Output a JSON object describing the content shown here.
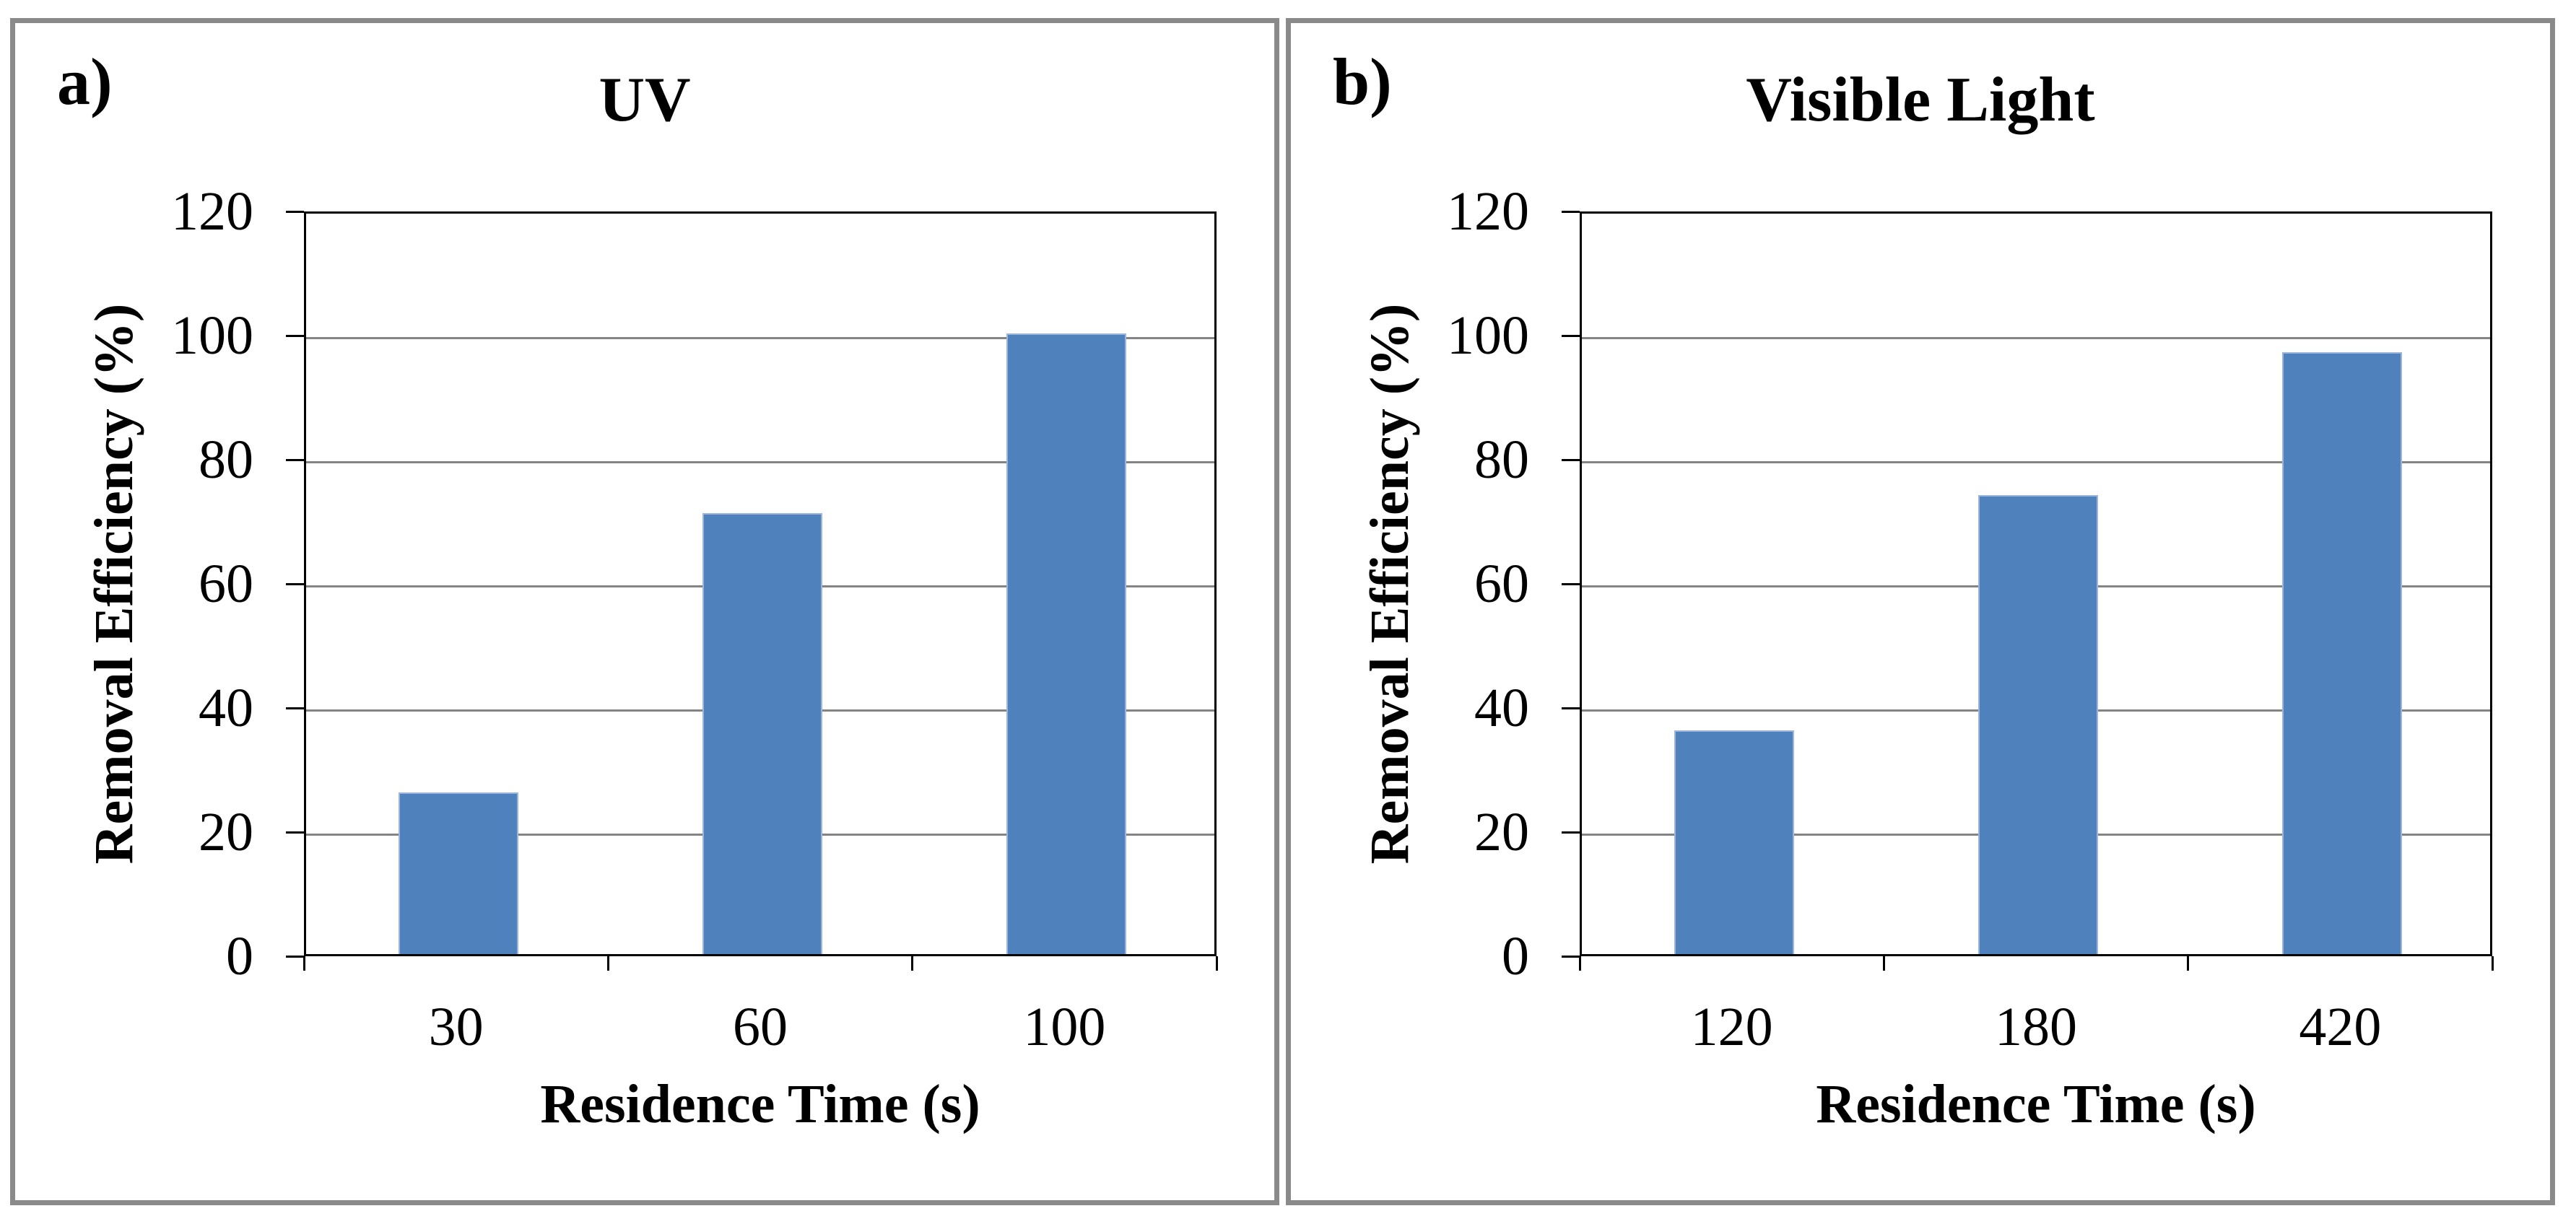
{
  "figure": {
    "background_color": "#FFFFFF",
    "panel_border_color": "#8A8A8A",
    "axis_color": "#000000",
    "gridline_color": "#848484"
  },
  "chart_data": [
    {
      "type": "bar",
      "panel_label": "a)",
      "title": "UV",
      "categories": [
        "30",
        "60",
        "100"
      ],
      "values": [
        26,
        71,
        100
      ],
      "xlabel": "Residence Time (s)",
      "ylabel": "Removal Efficiency (%)",
      "ylim": [
        0,
        120
      ],
      "yticks": [
        0,
        20,
        40,
        60,
        80,
        100,
        120
      ],
      "grid": true,
      "legend": "none",
      "bar_color": "#4F81BD",
      "bar_border_color": "#9CB6DB"
    },
    {
      "type": "bar",
      "panel_label": "b)",
      "title": "Visible Light",
      "categories": [
        "120",
        "180",
        "420"
      ],
      "values": [
        36,
        74,
        97
      ],
      "xlabel": "Residence Time (s)",
      "ylabel": "Removal Efficiency (%)",
      "ylim": [
        0,
        120
      ],
      "yticks": [
        0,
        20,
        40,
        60,
        80,
        100,
        120
      ],
      "grid": true,
      "legend": "none",
      "bar_color": "#4F81BD",
      "bar_border_color": "#9CB6DB"
    }
  ]
}
